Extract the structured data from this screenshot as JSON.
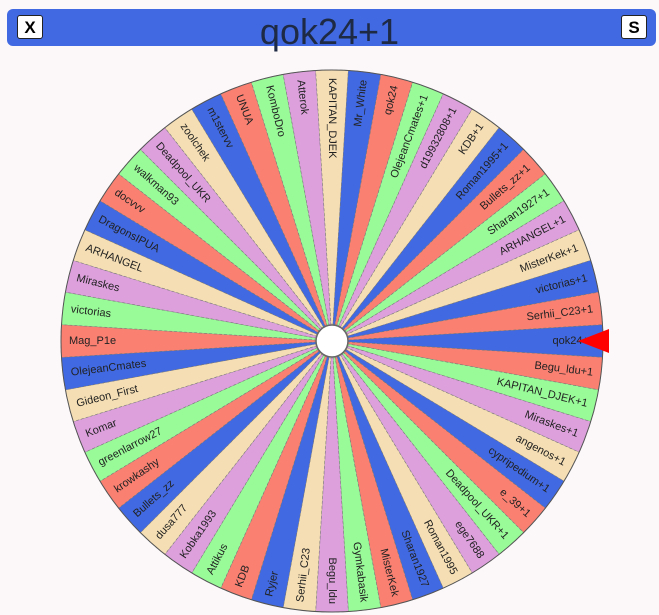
{
  "header": {
    "title": "qok24+1",
    "close_label": "X",
    "s_label": "S"
  },
  "wheel": {
    "colors": [
      "#4169e1",
      "#fa8072",
      "#98fb98",
      "#dda0dd",
      "#f5deb3"
    ],
    "pointer_color": "#ff0000",
    "segments": [
      "qok24+1",
      "Begu_ldu+1",
      "KAPITAN_DJEK+1",
      "Miraskes+1",
      "angenos+1",
      "cypripedium+1",
      "e_39+1",
      "Deadpool_UKR+1",
      "ege7688",
      "Roman1995",
      "Sharan1927",
      "MisterKek",
      "Gymkabasik",
      "Begu_ldu",
      "Serhii_C23",
      "Ryjer",
      "KDB",
      "Attikus",
      "Kobka1993",
      "dusa777",
      "Bullets_zz",
      "krowkashy",
      "greenlarrow27",
      "Komar",
      "Gideon_First",
      "OlejeanCmates",
      "Mag_P1e",
      "victorias",
      "Miraskes",
      "ARHANGEL",
      "DragonsIPUA",
      "docvvv",
      "walkman93",
      "Deadpool_UKR",
      "zoolchek",
      "m1stervv",
      "UNUA",
      "KomboDro",
      "Atterok",
      "KAPITAN_DJEK",
      "Mr_White",
      "qok24",
      "OlejeanCmates+1",
      "d19932808+1",
      "KDB+1",
      "Roman1995+1",
      "Bullets_zz+1",
      "Sharan1927+1",
      "ARHANGEL+1",
      "MisterKek+1",
      "victorias+1",
      "Serhii_C23+1"
    ]
  }
}
